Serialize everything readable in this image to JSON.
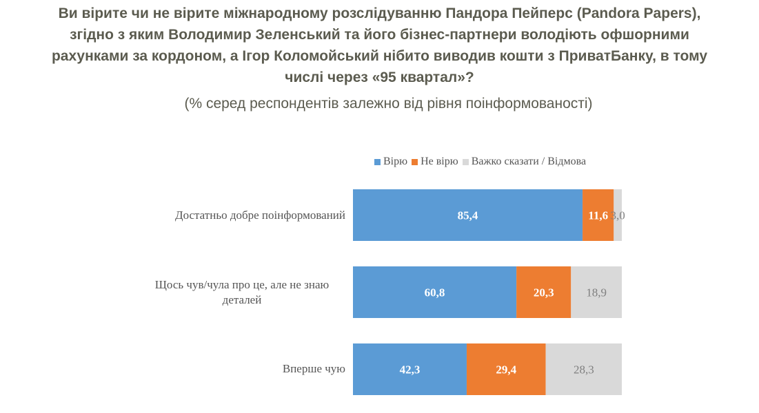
{
  "chart_data": {
    "type": "bar",
    "orientation": "horizontal",
    "stacked": true,
    "title_lines": [
      "Ви вірите чи не вірите міжнародному розслідуванню Пандора Пейперс (Pandora Papers),",
      "згідно з яким Володимир Зеленський та його бізнес-партнери володіють  офшорними",
      "рахунками за кордоном, а Ігор Коломойський нібито виводив кошти з ПриватБанку, в тому",
      "числі через «95 квартал»?"
    ],
    "subtitle": "(% серед респондентів залежно від рівня поінформованості)",
    "categories": [
      "Достатньо добре поінформований",
      "Щось чув/чула про це, але не знаю деталей",
      "Вперше чую"
    ],
    "series": [
      {
        "name": "Вірю",
        "color": "#5b9bd5",
        "label_color": "#ffffff",
        "values": [
          85.4,
          60.8,
          42.3
        ],
        "labels": [
          "85,4",
          "60,8",
          "42,3"
        ]
      },
      {
        "name": "Не вірю",
        "color": "#ed7d31",
        "label_color": "#ffffff",
        "values": [
          11.6,
          20.3,
          29.4
        ],
        "labels": [
          "11,6",
          "20,3",
          "29,4"
        ]
      },
      {
        "name": "Важко сказати / Відмова",
        "color": "#d9d9d9",
        "label_color": "#7f7f7f",
        "values": [
          3.0,
          18.9,
          28.3
        ],
        "labels": [
          "3,0",
          "18,9",
          "28,3"
        ]
      }
    ],
    "xlim": [
      0,
      100
    ],
    "legend_position": "top-right",
    "grid": false,
    "xlabel": "",
    "ylabel": ""
  }
}
